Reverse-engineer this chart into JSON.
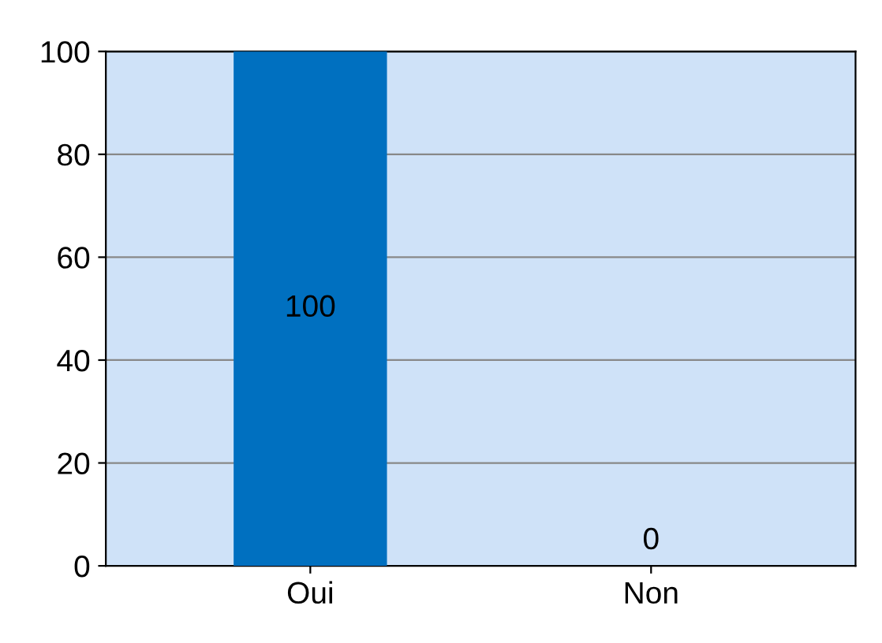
{
  "chart_data": {
    "type": "bar",
    "categories": [
      "Oui",
      "Non"
    ],
    "values": [
      100,
      0
    ],
    "colors": [
      "#0070c0",
      "#c00000"
    ],
    "ylim": [
      0,
      100
    ],
    "yticks": [
      0,
      20,
      40,
      60,
      80,
      100
    ],
    "grid": "y",
    "data_labels": true
  }
}
